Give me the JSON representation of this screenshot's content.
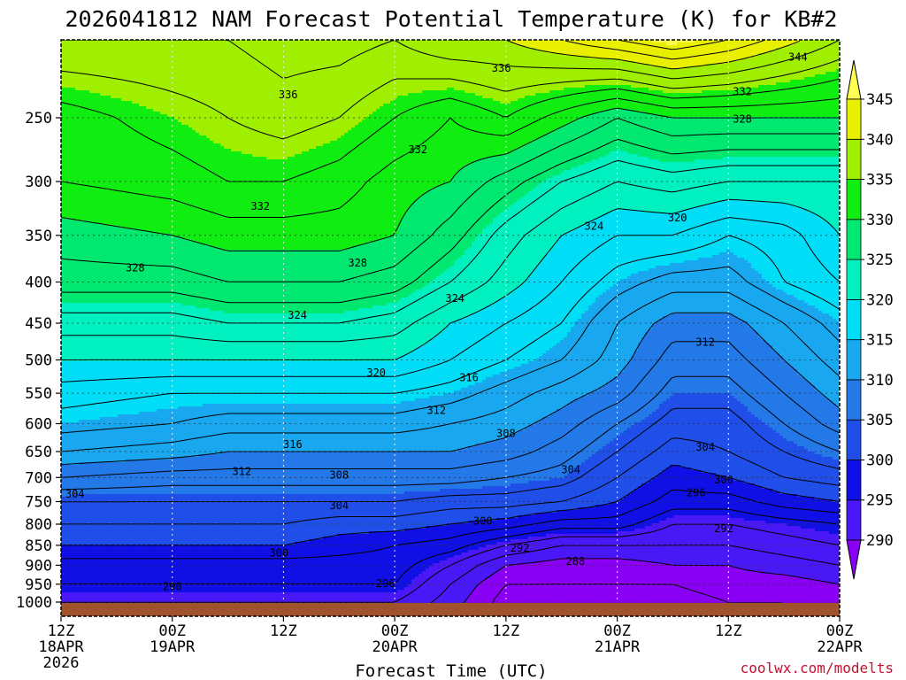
{
  "chart_data": {
    "type": "contour",
    "title": "2026041812 NAM Forecast Potential Temperature (K) for KB#2",
    "xlabel": "Forecast Time (UTC)",
    "credit": "coolwx.com/modelts",
    "y_scale": "log-pressure",
    "y_ticks": [
      250,
      300,
      350,
      400,
      450,
      500,
      550,
      600,
      650,
      700,
      750,
      800,
      850,
      900,
      950,
      1000
    ],
    "x_ticks": [
      {
        "hour": 0,
        "line1": "12Z",
        "line2": "18APR",
        "line3": "2026"
      },
      {
        "hour": 12,
        "line1": "00Z",
        "line2": "19APR",
        "line3": ""
      },
      {
        "hour": 24,
        "line1": "12Z",
        "line2": "",
        "line3": ""
      },
      {
        "hour": 36,
        "line1": "00Z",
        "line2": "20APR",
        "line3": ""
      },
      {
        "hour": 48,
        "line1": "12Z",
        "line2": "",
        "line3": ""
      },
      {
        "hour": 60,
        "line1": "00Z",
        "line2": "21APR",
        "line3": ""
      },
      {
        "hour": 72,
        "line1": "12Z",
        "line2": "",
        "line3": ""
      },
      {
        "hour": 84,
        "line1": "00Z",
        "line2": "22APR",
        "line3": ""
      }
    ],
    "x_range": [
      0,
      84
    ],
    "y_range": [
      200,
      1000
    ],
    "grid": true,
    "colorbar": {
      "levels": [
        290,
        295,
        300,
        305,
        310,
        315,
        320,
        325,
        330,
        335,
        340,
        345
      ],
      "colors": [
        "#8a00f5",
        "#4a17f7",
        "#1010e6",
        "#1f4fe8",
        "#2379e8",
        "#19a8f0",
        "#00ddf7",
        "#00f0c0",
        "#00e870",
        "#10ed10",
        "#a0ee00",
        "#e8f000",
        "#ffff50"
      ],
      "extend": "both"
    },
    "ground_color": "#a0522d",
    "contour_labels": [
      {
        "value": "344",
        "hour": 79.5,
        "p": 210
      },
      {
        "value": "336",
        "hour": 47.5,
        "p": 217
      },
      {
        "value": "336",
        "hour": 24.5,
        "p": 234
      },
      {
        "value": "332",
        "hour": 73.5,
        "p": 232
      },
      {
        "value": "328",
        "hour": 73.5,
        "p": 251
      },
      {
        "value": "332",
        "hour": 38.5,
        "p": 274
      },
      {
        "value": "332",
        "hour": 21.5,
        "p": 322
      },
      {
        "value": "324",
        "hour": 57.5,
        "p": 341
      },
      {
        "value": "320",
        "hour": 66.5,
        "p": 333
      },
      {
        "value": "328",
        "hour": 8,
        "p": 384
      },
      {
        "value": "328",
        "hour": 32,
        "p": 379
      },
      {
        "value": "324",
        "hour": 42.5,
        "p": 419
      },
      {
        "value": "324",
        "hour": 25.5,
        "p": 440
      },
      {
        "value": "320",
        "hour": 34,
        "p": 519
      },
      {
        "value": "316",
        "hour": 44,
        "p": 526
      },
      {
        "value": "312",
        "hour": 69.5,
        "p": 475
      },
      {
        "value": "312",
        "hour": 40.5,
        "p": 578
      },
      {
        "value": "308",
        "hour": 48,
        "p": 617
      },
      {
        "value": "316",
        "hour": 25,
        "p": 637
      },
      {
        "value": "304",
        "hour": 69.5,
        "p": 642
      },
      {
        "value": "304",
        "hour": 55,
        "p": 685
      },
      {
        "value": "312",
        "hour": 19.5,
        "p": 688
      },
      {
        "value": "308",
        "hour": 30,
        "p": 695
      },
      {
        "value": "300",
        "hour": 71.5,
        "p": 705
      },
      {
        "value": "296",
        "hour": 68.5,
        "p": 731
      },
      {
        "value": "304",
        "hour": 1.5,
        "p": 734
      },
      {
        "value": "304",
        "hour": 30,
        "p": 759
      },
      {
        "value": "300",
        "hour": 45.5,
        "p": 793
      },
      {
        "value": "292",
        "hour": 71.5,
        "p": 810
      },
      {
        "value": "292",
        "hour": 49.5,
        "p": 857
      },
      {
        "value": "300",
        "hour": 23.5,
        "p": 869
      },
      {
        "value": "288",
        "hour": 55.5,
        "p": 890
      },
      {
        "value": "296",
        "hour": 35,
        "p": 948
      },
      {
        "value": "296",
        "hour": 12,
        "p": 957
      }
    ]
  }
}
